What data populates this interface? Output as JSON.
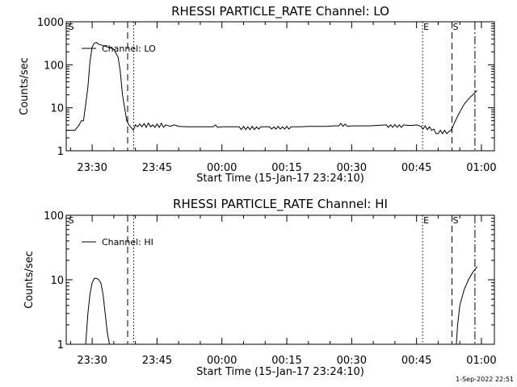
{
  "footer_date": "1-Sep-2022 22:51",
  "chart_data": [
    {
      "type": "line",
      "title": "RHESSI PARTICLE_RATE Channel: LO",
      "xlabel": "Start Time (15-Jan-17 23:24:10)",
      "ylabel": "Counts/sec",
      "yscale": "log",
      "ylim": [
        1,
        1000
      ],
      "xlim_min": [
        0,
        99
      ],
      "x_ticks": [
        {
          "min": 6,
          "label": "23:30"
        },
        {
          "min": 21,
          "label": "23:45"
        },
        {
          "min": 36,
          "label": "00:00"
        },
        {
          "min": 51,
          "label": "00:15"
        },
        {
          "min": 66,
          "label": "00:30"
        },
        {
          "min": 81,
          "label": "00:45"
        },
        {
          "min": 96,
          "label": "01:00"
        }
      ],
      "y_ticks": [
        {
          "v": 1,
          "label": "1"
        },
        {
          "v": 10,
          "label": "10"
        },
        {
          "v": 100,
          "label": "100"
        },
        {
          "v": 1000,
          "label": "1000"
        }
      ],
      "legend": {
        "label": "Channel: LO",
        "position": "top-left"
      },
      "markers": [
        {
          "min": 0.3,
          "label": "S",
          "style": "none"
        },
        {
          "min": 14.2,
          "label": "",
          "style": "dashed"
        },
        {
          "min": 15.6,
          "label": "",
          "style": "dotted"
        },
        {
          "min": 82.4,
          "label": "E",
          "style": "dotted"
        },
        {
          "min": 89.2,
          "label": "S",
          "style": "dashed"
        },
        {
          "min": 94.5,
          "label": "",
          "style": "dashdot"
        }
      ],
      "series": [
        {
          "name": "Channel: LO",
          "segments": [
            [
              [
                0,
                3
              ],
              [
                2,
                3
              ],
              [
                3,
                4
              ],
              [
                3.5,
                5
              ],
              [
                4,
                5
              ],
              [
                5,
                30
              ],
              [
                5.5,
                120
              ],
              [
                6,
                260
              ],
              [
                6.5,
                320
              ],
              [
                7,
                330
              ],
              [
                7.5,
                300
              ],
              [
                8,
                290
              ],
              [
                9,
                270
              ],
              [
                10,
                250
              ],
              [
                11,
                230
              ],
              [
                12,
                150
              ],
              [
                12.5,
                70
              ],
              [
                13,
                20
              ],
              [
                13.5,
                10
              ],
              [
                14,
                5
              ],
              [
                14.5,
                4
              ],
              [
                15,
                3.5
              ],
              [
                15.5,
                3
              ],
              [
                16,
                4
              ],
              [
                16.5,
                3.6
              ],
              [
                17,
                4.2
              ],
              [
                17.5,
                3.6
              ],
              [
                18,
                4.3
              ],
              [
                18.5,
                3.5
              ],
              [
                19,
                4.4
              ],
              [
                19.5,
                3.6
              ],
              [
                20,
                4
              ],
              [
                20.5,
                3.5
              ],
              [
                21,
                4.2
              ],
              [
                21.5,
                3.5
              ],
              [
                22,
                4.4
              ],
              [
                22.5,
                3.5
              ],
              [
                23,
                4
              ],
              [
                24,
                3.7
              ],
              [
                25,
                4
              ],
              [
                26,
                3.7
              ],
              [
                28,
                3.6
              ],
              [
                30,
                3.6
              ],
              [
                32,
                3.6
              ],
              [
                34,
                3.6
              ],
              [
                34.5,
                4
              ],
              [
                35,
                3.5
              ],
              [
                36,
                3.6
              ],
              [
                37,
                3.6
              ],
              [
                38,
                3.6
              ],
              [
                40,
                3.6
              ],
              [
                40.5,
                3.1
              ],
              [
                41,
                3.7
              ],
              [
                41.5,
                3.1
              ],
              [
                42,
                3.6
              ],
              [
                42.5,
                3.1
              ],
              [
                43,
                3.7
              ],
              [
                43.5,
                3.1
              ],
              [
                44,
                3.6
              ],
              [
                44.5,
                3.2
              ],
              [
                45,
                3.6
              ],
              [
                46,
                3.6
              ],
              [
                47,
                3.6
              ],
              [
                47.5,
                3.2
              ],
              [
                48,
                3.6
              ],
              [
                48.5,
                3.2
              ],
              [
                49,
                3.7
              ],
              [
                49.5,
                3.2
              ],
              [
                50,
                3.6
              ],
              [
                50.5,
                3.2
              ],
              [
                51,
                3.7
              ],
              [
                51.5,
                3.2
              ],
              [
                52,
                3.6
              ],
              [
                53,
                3.6
              ],
              [
                54,
                3.6
              ],
              [
                56,
                3.7
              ],
              [
                58,
                3.7
              ],
              [
                60,
                3.7
              ],
              [
                62,
                3.8
              ],
              [
                63,
                3.8
              ],
              [
                63.5,
                4.3
              ],
              [
                64,
                3.7
              ],
              [
                64.5,
                4.2
              ],
              [
                65,
                3.7
              ],
              [
                66,
                3.8
              ],
              [
                68,
                3.8
              ],
              [
                70,
                3.8
              ],
              [
                72,
                3.9
              ],
              [
                74,
                4
              ],
              [
                74.5,
                3.5
              ],
              [
                75,
                4
              ],
              [
                75.5,
                3.5
              ],
              [
                76,
                4.1
              ],
              [
                76.5,
                3.5
              ],
              [
                77,
                4
              ],
              [
                77.5,
                3.5
              ],
              [
                78,
                4
              ],
              [
                79,
                3.9
              ],
              [
                80,
                3.9
              ],
              [
                81,
                4
              ],
              [
                82,
                3.7
              ],
              [
                82.5,
                3.2
              ],
              [
                83,
                3.8
              ],
              [
                83.5,
                3.1
              ],
              [
                84,
                3.6
              ],
              [
                84.5,
                3
              ],
              [
                85,
                3.2
              ],
              [
                85.5,
                2.5
              ],
              [
                86,
                2.5
              ],
              [
                86.5,
                3
              ],
              [
                87,
                2.5
              ],
              [
                87.5,
                3
              ],
              [
                88,
                2.5
              ],
              [
                88.5,
                2.8
              ],
              [
                89,
                3
              ],
              [
                90,
                5
              ],
              [
                91,
                8
              ],
              [
                92,
                12
              ],
              [
                93,
                16
              ],
              [
                94,
                20
              ],
              [
                95,
                25
              ]
            ]
          ]
        }
      ]
    },
    {
      "type": "line",
      "title": "RHESSI PARTICLE_RATE Channel: HI",
      "xlabel": "Start Time (15-Jan-17 23:24:10)",
      "ylabel": "Counts/sec",
      "yscale": "log",
      "ylim": [
        1,
        100
      ],
      "xlim_min": [
        0,
        99
      ],
      "x_ticks": [
        {
          "min": 6,
          "label": "23:30"
        },
        {
          "min": 21,
          "label": "23:45"
        },
        {
          "min": 36,
          "label": "00:00"
        },
        {
          "min": 51,
          "label": "00:15"
        },
        {
          "min": 66,
          "label": "00:30"
        },
        {
          "min": 81,
          "label": "00:45"
        },
        {
          "min": 96,
          "label": "01:00"
        }
      ],
      "y_ticks": [
        {
          "v": 1,
          "label": "1"
        },
        {
          "v": 10,
          "label": "10"
        },
        {
          "v": 100,
          "label": "100"
        }
      ],
      "legend": {
        "label": "Channel: HI",
        "position": "top-left"
      },
      "markers": [
        {
          "min": 0.3,
          "label": "S",
          "style": "none"
        },
        {
          "min": 14.2,
          "label": "",
          "style": "dashed"
        },
        {
          "min": 15.6,
          "label": "",
          "style": "dotted"
        },
        {
          "min": 82.4,
          "label": "E",
          "style": "dotted"
        },
        {
          "min": 89.2,
          "label": "S",
          "style": "dashed"
        },
        {
          "min": 94.5,
          "label": "",
          "style": "dashdot"
        }
      ],
      "series": [
        {
          "name": "Channel: HI",
          "segments": [
            [
              [
                4.5,
                1
              ],
              [
                5,
                3
              ],
              [
                5.5,
                6
              ],
              [
                6,
                9
              ],
              [
                6.5,
                10.5
              ],
              [
                7,
                10.5
              ],
              [
                7.5,
                10
              ],
              [
                8,
                9
              ],
              [
                8.5,
                6
              ],
              [
                9,
                3
              ],
              [
                9.5,
                1.5
              ],
              [
                10,
                1
              ]
            ],
            [
              [
                90.2,
                1
              ],
              [
                90.5,
                2
              ],
              [
                91,
                4
              ],
              [
                92,
                7
              ],
              [
                93,
                10
              ],
              [
                94,
                13
              ],
              [
                95,
                16
              ]
            ]
          ]
        }
      ]
    }
  ]
}
